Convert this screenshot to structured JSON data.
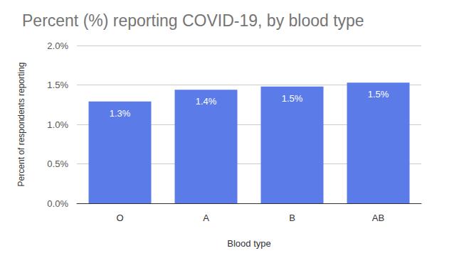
{
  "chart_data": {
    "type": "bar",
    "title": "Percent (%) reporting COVID-19, by blood type",
    "x_label": "Blood type",
    "y_label": "Percent of respondents reporting",
    "categories": [
      "O",
      "A",
      "B",
      "AB"
    ],
    "values": [
      1.29,
      1.44,
      1.48,
      1.53
    ],
    "value_labels": [
      "1.3%",
      "1.4%",
      "1.5%",
      "1.5%"
    ],
    "color": "#5b7ce8",
    "ylim": [
      0,
      2
    ],
    "yticks": [
      {
        "value": 0,
        "label": "0.0%"
      },
      {
        "value": 0.5,
        "label": "0.5%"
      },
      {
        "value": 1,
        "label": "1.0%"
      },
      {
        "value": 1.5,
        "label": "1.5%"
      },
      {
        "value": 2,
        "label": "2.0%"
      }
    ],
    "grid": true,
    "data_labels": true
  }
}
